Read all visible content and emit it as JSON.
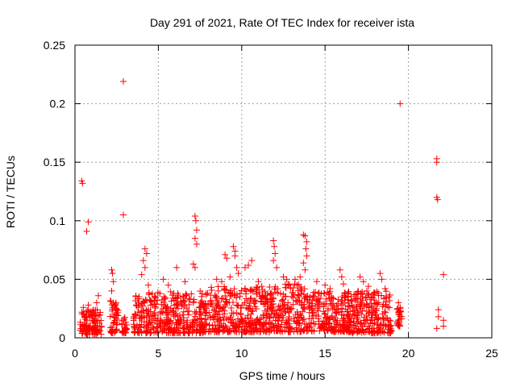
{
  "chart_data": {
    "type": "scatter",
    "title": "Day 291 of 2021, Rate Of TEC Index for receiver ista",
    "xlabel": "GPS time / hours",
    "ylabel": "ROTI / TECUs",
    "xlim": [
      0,
      25
    ],
    "ylim": [
      0,
      0.25
    ],
    "xticks": [
      0,
      5,
      10,
      15,
      20,
      25
    ],
    "xtick_labels": [
      "0",
      "5",
      "10",
      "15",
      "20",
      "25"
    ],
    "yticks": [
      0,
      0.05,
      0.1,
      0.15,
      0.2,
      0.25
    ],
    "ytick_labels": [
      "0",
      "0.05",
      "0.1",
      "0.15",
      "0.2",
      "0.25"
    ],
    "grid": true,
    "marker": "+",
    "marker_color": "#ff0000",
    "series": [
      {
        "points": [
          [
            0.4,
            0.134
          ],
          [
            0.45,
            0.132
          ],
          [
            0.8,
            0.099
          ],
          [
            0.7,
            0.091
          ],
          [
            2.9,
            0.219
          ],
          [
            2.9,
            0.105
          ],
          [
            19.5,
            0.2
          ],
          [
            21.7,
            0.153
          ],
          [
            21.7,
            0.15
          ],
          [
            21.7,
            0.12
          ],
          [
            21.75,
            0.118
          ],
          [
            22.1,
            0.054
          ],
          [
            21.8,
            0.024
          ],
          [
            21.8,
            0.018
          ],
          [
            21.7,
            0.008
          ],
          [
            22.1,
            0.015
          ],
          [
            22.1,
            0.01
          ],
          [
            2.2,
            0.058
          ],
          [
            2.25,
            0.055
          ],
          [
            2.3,
            0.048
          ],
          [
            2.2,
            0.04
          ],
          [
            2.3,
            0.03
          ],
          [
            1.4,
            0.036
          ],
          [
            1.3,
            0.03
          ],
          [
            0.5,
            0.026
          ],
          [
            0.8,
            0.028
          ],
          [
            4.2,
            0.076
          ],
          [
            4.3,
            0.072
          ],
          [
            4.1,
            0.066
          ],
          [
            4.2,
            0.06
          ],
          [
            4.0,
            0.054
          ],
          [
            4.4,
            0.045
          ],
          [
            6.1,
            0.06
          ],
          [
            5.3,
            0.05
          ],
          [
            5.6,
            0.045
          ],
          [
            6.6,
            0.048
          ],
          [
            7.2,
            0.104
          ],
          [
            7.25,
            0.1
          ],
          [
            7.3,
            0.092
          ],
          [
            7.2,
            0.085
          ],
          [
            7.3,
            0.08
          ],
          [
            7.1,
            0.063
          ],
          [
            7.2,
            0.06
          ],
          [
            8.5,
            0.05
          ],
          [
            8.8,
            0.048
          ],
          [
            8.6,
            0.04
          ],
          [
            9.0,
            0.071
          ],
          [
            9.1,
            0.068
          ],
          [
            9.3,
            0.052
          ],
          [
            9.5,
            0.078
          ],
          [
            9.6,
            0.074
          ],
          [
            9.6,
            0.07
          ],
          [
            9.7,
            0.06
          ],
          [
            9.8,
            0.055
          ],
          [
            10.2,
            0.06
          ],
          [
            10.4,
            0.062
          ],
          [
            10.6,
            0.066
          ],
          [
            11.0,
            0.048
          ],
          [
            11.2,
            0.044
          ],
          [
            11.9,
            0.083
          ],
          [
            11.95,
            0.078
          ],
          [
            12.0,
            0.072
          ],
          [
            11.9,
            0.066
          ],
          [
            12.1,
            0.06
          ],
          [
            12.5,
            0.052
          ],
          [
            12.7,
            0.05
          ],
          [
            13.2,
            0.05
          ],
          [
            13.5,
            0.052
          ],
          [
            13.7,
            0.088
          ],
          [
            13.8,
            0.087
          ],
          [
            13.9,
            0.082
          ],
          [
            13.85,
            0.076
          ],
          [
            13.9,
            0.07
          ],
          [
            13.7,
            0.064
          ],
          [
            13.8,
            0.058
          ],
          [
            14.5,
            0.048
          ],
          [
            15.0,
            0.045
          ],
          [
            15.3,
            0.042
          ],
          [
            15.9,
            0.058
          ],
          [
            16.0,
            0.052
          ],
          [
            16.1,
            0.046
          ],
          [
            17.1,
            0.052
          ],
          [
            17.3,
            0.048
          ],
          [
            17.6,
            0.044
          ],
          [
            17.5,
            0.04
          ],
          [
            18.3,
            0.055
          ],
          [
            18.4,
            0.05
          ],
          [
            18.6,
            0.042
          ],
          [
            19.4,
            0.03
          ],
          [
            19.5,
            0.026
          ],
          [
            19.6,
            0.018
          ]
        ]
      }
    ]
  }
}
